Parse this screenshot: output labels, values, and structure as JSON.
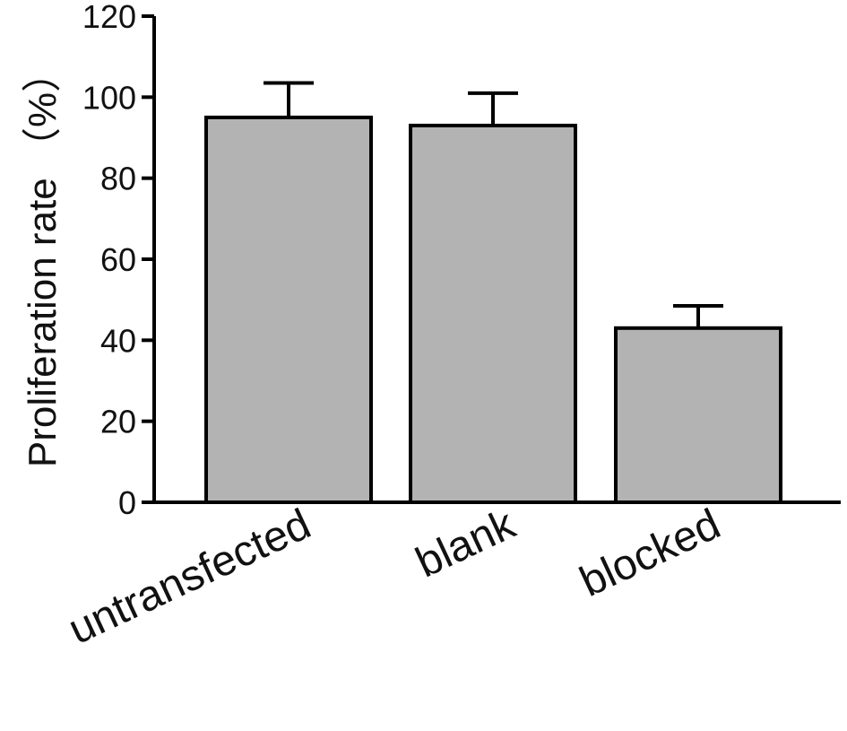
{
  "chart_data": {
    "type": "bar",
    "title": "",
    "ylabel": "Proliferation rate （%）",
    "xlabel": "",
    "ylim": [
      0,
      120
    ],
    "yticks": [
      0,
      20,
      40,
      60,
      80,
      100,
      120
    ],
    "categories": [
      "untransfected",
      "blank",
      "blocked"
    ],
    "values": [
      95,
      93,
      43
    ],
    "errors": [
      8.5,
      8,
      5.5
    ],
    "grid": false,
    "legend": "none",
    "bar_color": "#b3b3b3",
    "edge_color": "#000000"
  }
}
